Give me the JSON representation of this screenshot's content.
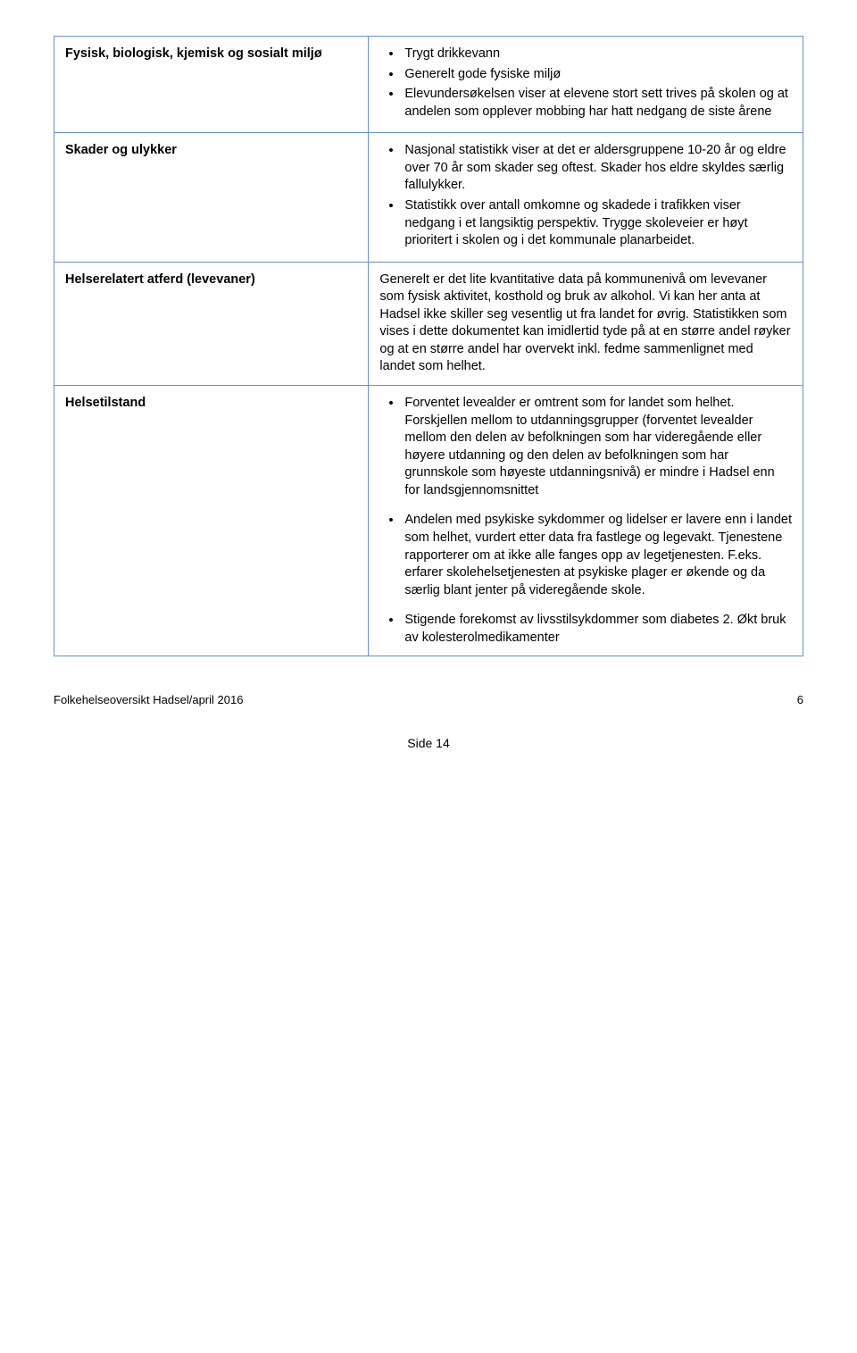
{
  "rows": [
    {
      "label": "Fysisk, biologisk, kjemisk og sosialt miljø",
      "type": "list",
      "items": [
        "Trygt drikkevann",
        "Generelt gode fysiske miljø",
        "Elevundersøkelsen viser at elevene stort sett trives på skolen og at andelen som opplever mobbing har hatt nedgang de siste årene"
      ]
    },
    {
      "label": "Skader og ulykker",
      "type": "list",
      "items": [
        "Nasjonal statistikk viser at det er aldersgruppene 10-20 år og eldre over 70 år som skader seg oftest. Skader hos eldre skyldes særlig fallulykker.",
        "Statistikk over antall omkomne og skadede i trafikken viser nedgang i et langsiktig perspektiv. Trygge skoleveier er høyt prioritert i skolen og i det kommunale planarbeidet."
      ]
    },
    {
      "label": "Helserelatert atferd (levevaner)",
      "type": "text",
      "text": "Generelt er det lite kvantitative data på kommunenivå om levevaner som fysisk aktivitet, kosthold og bruk av alkohol. Vi kan her anta at Hadsel ikke skiller seg vesentlig ut fra landet for øvrig. Statistikken som vises i dette dokumentet kan imidlertid tyde på at en større andel røyker og at en større andel har overvekt inkl. fedme sammenlignet med landet som helhet."
    },
    {
      "label": "Helsetilstand",
      "type": "list-spaced",
      "items": [
        "Forventet levealder er omtrent som for landet som helhet. Forskjellen mellom to utdanningsgrupper (forventet levealder mellom den delen av befolkningen som har videregående eller høyere utdanning og den delen av befolkningen som har grunnskole som høyeste utdanningsnivå) er mindre i Hadsel enn for landsgjennomsnittet",
        "Andelen med psykiske sykdommer og lidelser er lavere enn i landet som helhet, vurdert etter data fra fastlege og legevakt. Tjenestene rapporterer om at ikke alle fanges opp av legetjenesten. F.eks. erfarer skolehelsetjenesten at psykiske plager er økende og da særlig blant jenter på videregående skole.",
        "Stigende forekomst av livsstilsykdommer som diabetes 2. Økt bruk av kolesterolmedikamenter"
      ]
    }
  ],
  "footer_left": "Folkehelseoversikt Hadsel/april 2016",
  "page_number": "6",
  "side_label": "Side 14"
}
